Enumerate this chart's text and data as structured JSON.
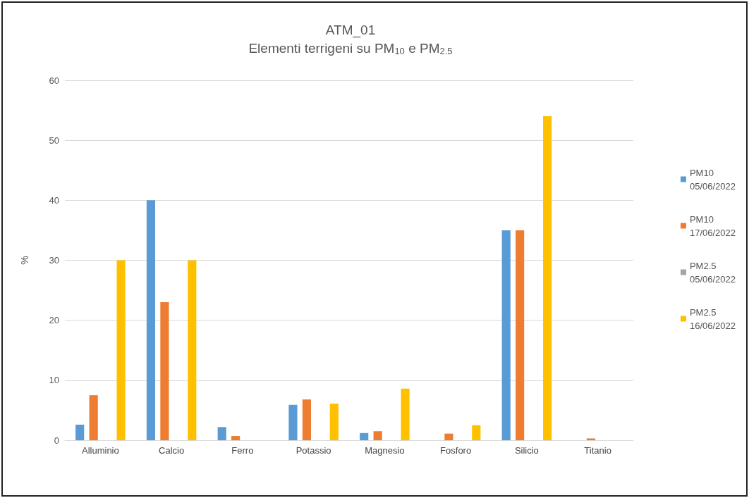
{
  "chart_data": {
    "type": "bar",
    "title": "ATM_01",
    "subtitle": "Elementi terrigeni su PM$_{10}$ e PM$_{2.5}$",
    "ylabel": "%",
    "categories": [
      "Alluminio",
      "Calcio",
      "Ferro",
      "Potassio",
      "Magnesio",
      "Fosforo",
      "Silicio",
      "Titanio"
    ],
    "series": [
      {
        "name": "PM10\n05/06/2022",
        "color": "#5b9bd5",
        "values": [
          2.6,
          40,
          2.2,
          5.9,
          1.2,
          0,
          35,
          0
        ]
      },
      {
        "name": "PM10\n17/06/2022",
        "color": "#ed7d31",
        "values": [
          7.5,
          23,
          0.7,
          6.8,
          1.5,
          1.1,
          35,
          0.3
        ]
      },
      {
        "name": "PM2.5\n05/06/2022",
        "color": "#a5a5a5",
        "values": [
          0,
          0,
          0,
          0,
          0,
          0,
          0,
          0
        ]
      },
      {
        "name": "PM2.5\n16/06/2022",
        "color": "#ffc000",
        "values": [
          30,
          30,
          0,
          6.1,
          8.6,
          2.5,
          54,
          0
        ]
      }
    ],
    "ylim": [
      0,
      60
    ],
    "yticks": [
      0,
      10,
      20,
      30,
      40,
      50,
      60
    ],
    "grid": "y",
    "legend": "right"
  }
}
